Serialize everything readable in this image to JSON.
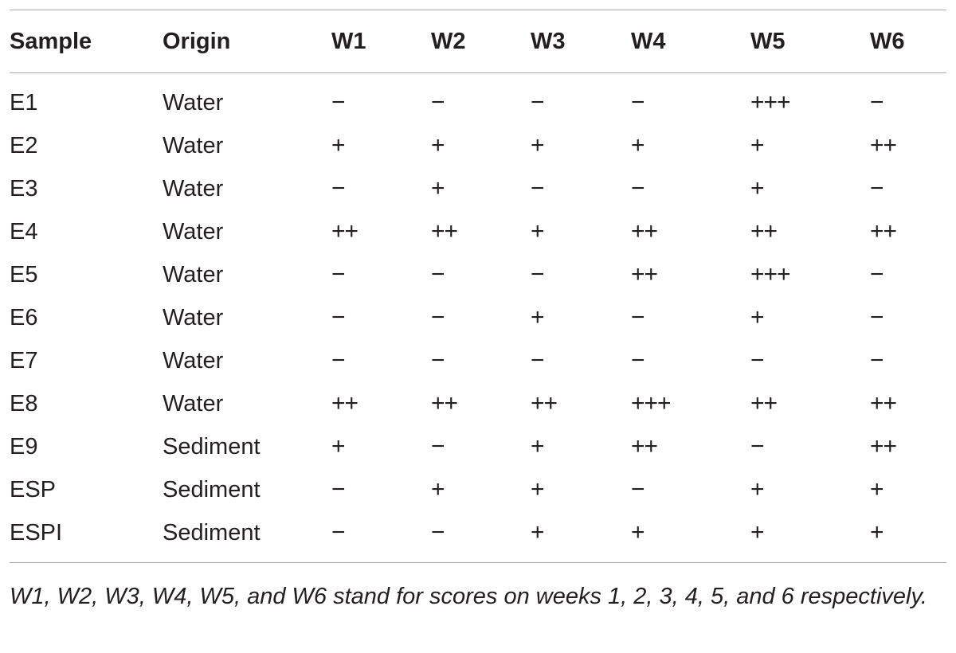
{
  "table": {
    "headers": [
      "Sample",
      "Origin",
      "W1",
      "W2",
      "W3",
      "W4",
      "W5",
      "W6"
    ],
    "rows": [
      [
        "E1",
        "Water",
        "−",
        "−",
        "−",
        "−",
        "+++",
        "−"
      ],
      [
        "E2",
        "Water",
        "+",
        "+",
        "+",
        "+",
        "+",
        "++"
      ],
      [
        "E3",
        "Water",
        "−",
        "+",
        "−",
        "−",
        "+",
        "−"
      ],
      [
        "E4",
        "Water",
        "++",
        "++",
        "+",
        "++",
        "++",
        "++"
      ],
      [
        "E5",
        "Water",
        "−",
        "−",
        "−",
        "++",
        "+++",
        "−"
      ],
      [
        "E6",
        "Water",
        "−",
        "−",
        "+",
        "−",
        "+",
        "−"
      ],
      [
        "E7",
        "Water",
        "−",
        "−",
        "−",
        "−",
        "−",
        "−"
      ],
      [
        "E8",
        "Water",
        "++",
        "++",
        "++",
        "+++",
        "++",
        "++"
      ],
      [
        "E9",
        "Sediment",
        "+",
        "−",
        "+",
        "++",
        "−",
        "++"
      ],
      [
        "ESP",
        "Sediment",
        "−",
        "+",
        "+",
        "−",
        "+",
        "+"
      ],
      [
        "ESPI",
        "Sediment",
        "−",
        "−",
        "+",
        "+",
        "+",
        "+"
      ]
    ]
  },
  "footnote": "W1, W2, W3, W4, W5, and W6 stand for scores on weeks 1, 2, 3, 4, 5, and 6 respectively."
}
